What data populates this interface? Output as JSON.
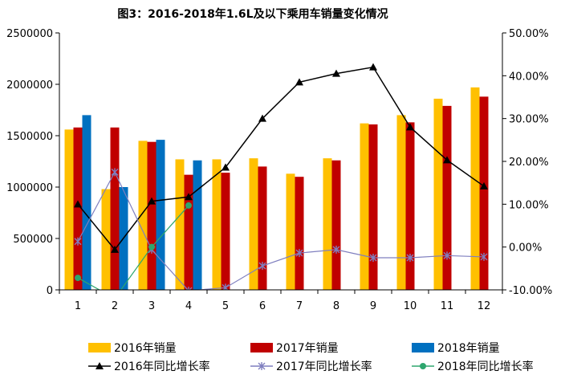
{
  "chart_data": {
    "type": "bar",
    "title": "图3：2016-2018年1.6L及以下乘用车销量变化情况",
    "categories": [
      "1",
      "2",
      "3",
      "4",
      "5",
      "6",
      "7",
      "8",
      "9",
      "10",
      "11",
      "12"
    ],
    "y_left": {
      "range": [
        0,
        2500000
      ],
      "ticks": [
        "0",
        "500000",
        "1000000",
        "1500000",
        "2000000",
        "2500000"
      ]
    },
    "y_right": {
      "range": [
        -10,
        50
      ],
      "unit": "%",
      "ticks": [
        "-10.00%",
        "0.00%",
        "10.00%",
        "20.00%",
        "30.00%",
        "40.00%",
        "50.00%"
      ]
    },
    "grid": false,
    "legend_position": "bottom",
    "bar_series": [
      {
        "name": "2016年销量",
        "color": "#FFC000",
        "values": [
          1560000,
          980000,
          1450000,
          1270000,
          1270000,
          1280000,
          1130000,
          1280000,
          1620000,
          1700000,
          1860000,
          1970000
        ]
      },
      {
        "name": "2017年销量",
        "color": "#C00000",
        "values": [
          1580000,
          1580000,
          1440000,
          1120000,
          1140000,
          1200000,
          1100000,
          1260000,
          1610000,
          1630000,
          1790000,
          1880000
        ]
      },
      {
        "name": "2018年销量",
        "color": "#0070C0",
        "values": [
          1700000,
          1000000,
          1460000,
          1260000,
          null,
          null,
          null,
          null,
          null,
          null,
          null,
          null
        ]
      }
    ],
    "line_series": [
      {
        "name": "2016年同比增长率",
        "color": "#000000",
        "marker": "triangle",
        "values": [
          10.0,
          -0.6,
          10.7,
          11.7,
          18.6,
          30.0,
          38.5,
          40.5,
          42.0,
          28.0,
          20.3,
          14.2
        ]
      },
      {
        "name": "2017年同比增长率",
        "color": "#7F7FBF",
        "marker": "star",
        "values": [
          1.3,
          17.5,
          -0.6,
          -10.2,
          -9.5,
          -4.4,
          -1.4,
          -0.6,
          -2.5,
          -2.5,
          -2.0,
          -2.3
        ]
      },
      {
        "name": "2018年同比增长率",
        "color": "#2EA66E",
        "marker": "circle",
        "values": [
          -7.2,
          -12.0,
          0.0,
          9.7,
          null,
          null,
          null,
          null,
          null,
          null,
          null,
          null
        ]
      }
    ]
  }
}
